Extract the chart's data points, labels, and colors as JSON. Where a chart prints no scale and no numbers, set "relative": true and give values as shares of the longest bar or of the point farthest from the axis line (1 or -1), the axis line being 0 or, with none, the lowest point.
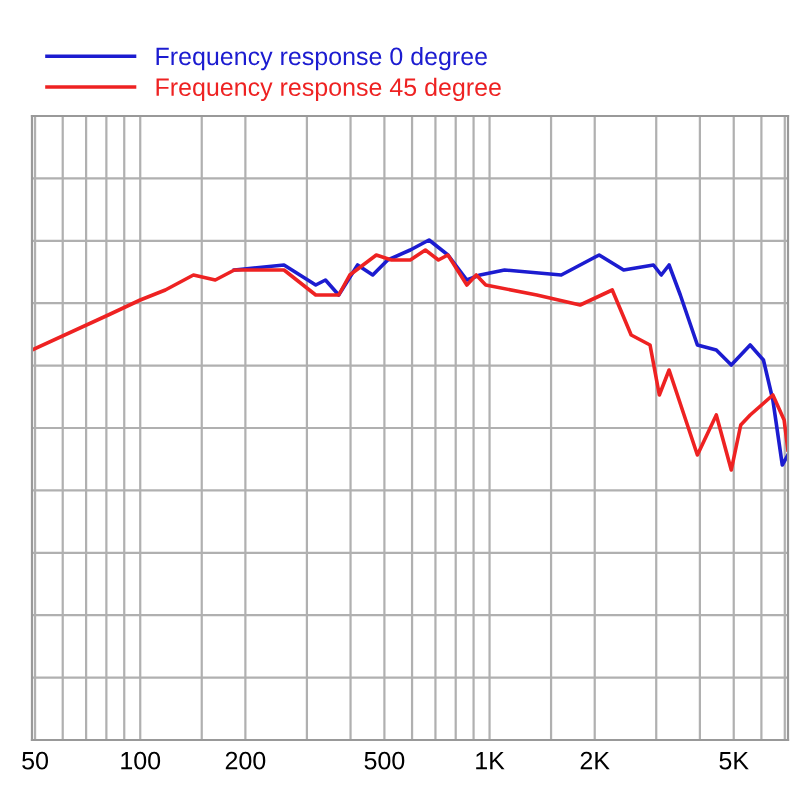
{
  "chart_data": {
    "type": "line",
    "relative": true,
    "log": "x",
    "grid": true,
    "tick_labels": "x",
    "legend": "top left",
    "marker": "none",
    "line_style": "solid",
    "xlim": [
      49,
      7150
    ],
    "xticks": [
      50,
      {
        "value": 60,
        "label": null
      },
      {
        "value": 70,
        "label": null
      },
      {
        "value": 80,
        "label": null
      },
      {
        "value": 90,
        "label": null
      },
      100,
      {
        "value": 150,
        "label": null
      },
      200,
      {
        "value": 300,
        "label": null
      },
      {
        "value": 400,
        "label": null
      },
      500,
      {
        "value": 600,
        "label": null
      },
      {
        "value": 700,
        "label": null
      },
      {
        "value": 800,
        "label": null
      },
      {
        "value": 900,
        "label": null
      },
      {
        "value": 1000,
        "label": "1K"
      },
      {
        "value": 1500,
        "label": null
      },
      {
        "value": 2000,
        "label": "2K"
      },
      {
        "value": 3000,
        "label": null
      },
      {
        "value": 4000,
        "label": null
      },
      {
        "value": 5000,
        "label": "5K"
      },
      {
        "value": 6000,
        "label": null
      },
      {
        "value": 7000,
        "label": null
      }
    ],
    "series": [
      {
        "name": "Frequency response 0 degree",
        "color": "#1c1cd0",
        "x": [
          186,
          258,
          318,
          339,
          370,
          419,
          463,
          511,
          593,
          671,
          760,
          861,
          939,
          1104,
          1604,
          2059,
          2420,
          2946,
          3101,
          3265,
          3516,
          3935,
          4457,
          4920,
          5572,
          6081,
          6471,
          6886,
          7145
        ],
        "values": [
          0.94,
          0.95,
          0.91,
          0.92,
          0.89,
          0.95,
          0.93,
          0.96,
          0.98,
          1.0,
          0.97,
          0.92,
          0.93,
          0.94,
          0.93,
          0.97,
          0.94,
          0.95,
          0.93,
          0.95,
          0.89,
          0.79,
          0.78,
          0.75,
          0.79,
          0.76,
          0.68,
          0.55,
          0.57
        ]
      },
      {
        "name": "Frequency response 45 degree",
        "color": "#ee2222",
        "x": [
          49,
          81,
          100,
          118,
          142,
          164,
          186,
          258,
          318,
          370,
          398,
          474,
          524,
          593,
          655,
          714,
          760,
          861,
          916,
          975,
          1365,
          1817,
          2245,
          2543,
          2880,
          3062,
          3265,
          3935,
          4457,
          4920,
          5236,
          5572,
          6471,
          6970,
          7145
        ],
        "values": [
          0.78,
          0.85,
          0.88,
          0.9,
          0.93,
          0.92,
          0.94,
          0.94,
          0.89,
          0.89,
          0.93,
          0.97,
          0.96,
          0.96,
          0.98,
          0.96,
          0.97,
          0.91,
          0.93,
          0.91,
          0.89,
          0.87,
          0.9,
          0.81,
          0.79,
          0.69,
          0.74,
          0.57,
          0.65,
          0.54,
          0.63,
          0.65,
          0.69,
          0.64,
          0.58
        ]
      }
    ]
  }
}
